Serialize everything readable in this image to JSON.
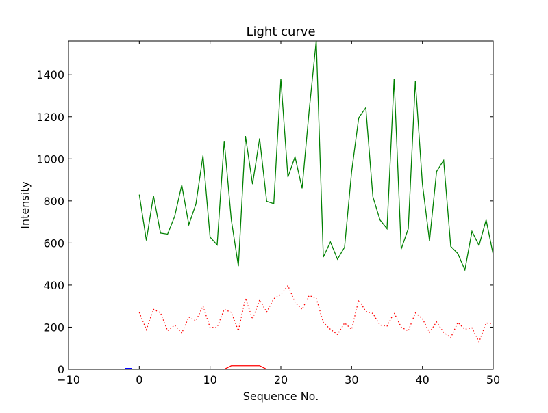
{
  "chart_data": {
    "type": "line",
    "title": "Light curve",
    "xlabel": "Sequence No.",
    "ylabel": "Intensity",
    "xlim": [
      -10,
      50
    ],
    "ylim": [
      0,
      1560
    ],
    "x_ticks": [
      -10,
      0,
      10,
      20,
      30,
      40,
      50
    ],
    "y_ticks": [
      0,
      200,
      400,
      600,
      800,
      1000,
      1200,
      1400
    ],
    "grid": false,
    "legend": "none",
    "series": [
      {
        "color": "#008000",
        "style": "solid",
        "x": [
          0,
          1,
          2,
          3,
          4,
          5,
          6,
          7,
          8,
          9,
          10,
          11,
          12,
          13,
          14,
          15,
          16,
          17,
          18,
          19,
          20,
          21,
          22,
          23,
          24,
          25,
          26,
          27,
          28,
          29,
          30,
          31,
          32,
          33,
          34,
          35,
          36,
          37,
          38,
          39,
          40,
          41,
          42,
          43,
          44,
          45,
          46,
          47,
          48,
          49,
          50
        ],
        "values": [
          830,
          612,
          825,
          647,
          642,
          727,
          876,
          687,
          785,
          1016,
          628,
          591,
          1085,
          710,
          490,
          1108,
          880,
          1097,
          798,
          787,
          1380,
          913,
          1010,
          860,
          1230,
          1562,
          533,
          605,
          523,
          580,
          940,
          1195,
          1243,
          820,
          710,
          668,
          1380,
          571,
          668,
          1370,
          880,
          610,
          940,
          993,
          584,
          550,
          472,
          655,
          588,
          710,
          545
        ]
      },
      {
        "color": "#ff0000",
        "style": "dotted",
        "x": [
          0,
          1,
          2,
          3,
          4,
          5,
          6,
          7,
          8,
          9,
          10,
          11,
          12,
          13,
          14,
          15,
          16,
          17,
          18,
          19,
          20,
          21,
          22,
          23,
          24,
          25,
          26,
          27,
          28,
          29,
          30,
          31,
          32,
          33,
          34,
          35,
          36,
          37,
          38,
          39,
          40,
          41,
          42,
          43,
          44,
          45,
          46,
          47,
          48,
          49,
          50
        ],
        "values": [
          270,
          188,
          285,
          268,
          183,
          210,
          172,
          248,
          230,
          300,
          198,
          200,
          285,
          270,
          183,
          338,
          238,
          330,
          272,
          335,
          355,
          398,
          318,
          285,
          350,
          338,
          222,
          190,
          165,
          220,
          190,
          330,
          275,
          265,
          210,
          205,
          268,
          200,
          182,
          268,
          240,
          175,
          225,
          175,
          150,
          222,
          190,
          197,
          130,
          220,
          215
        ]
      },
      {
        "color": "#ff0000",
        "style": "solid",
        "x": [
          -1,
          12,
          13,
          17,
          18,
          50
        ],
        "values": [
          0,
          0,
          17,
          17,
          0,
          0
        ]
      },
      {
        "color": "#0000ff",
        "style": "solid",
        "x": [
          -2,
          -1
        ],
        "values": [
          0,
          0
        ]
      }
    ]
  }
}
